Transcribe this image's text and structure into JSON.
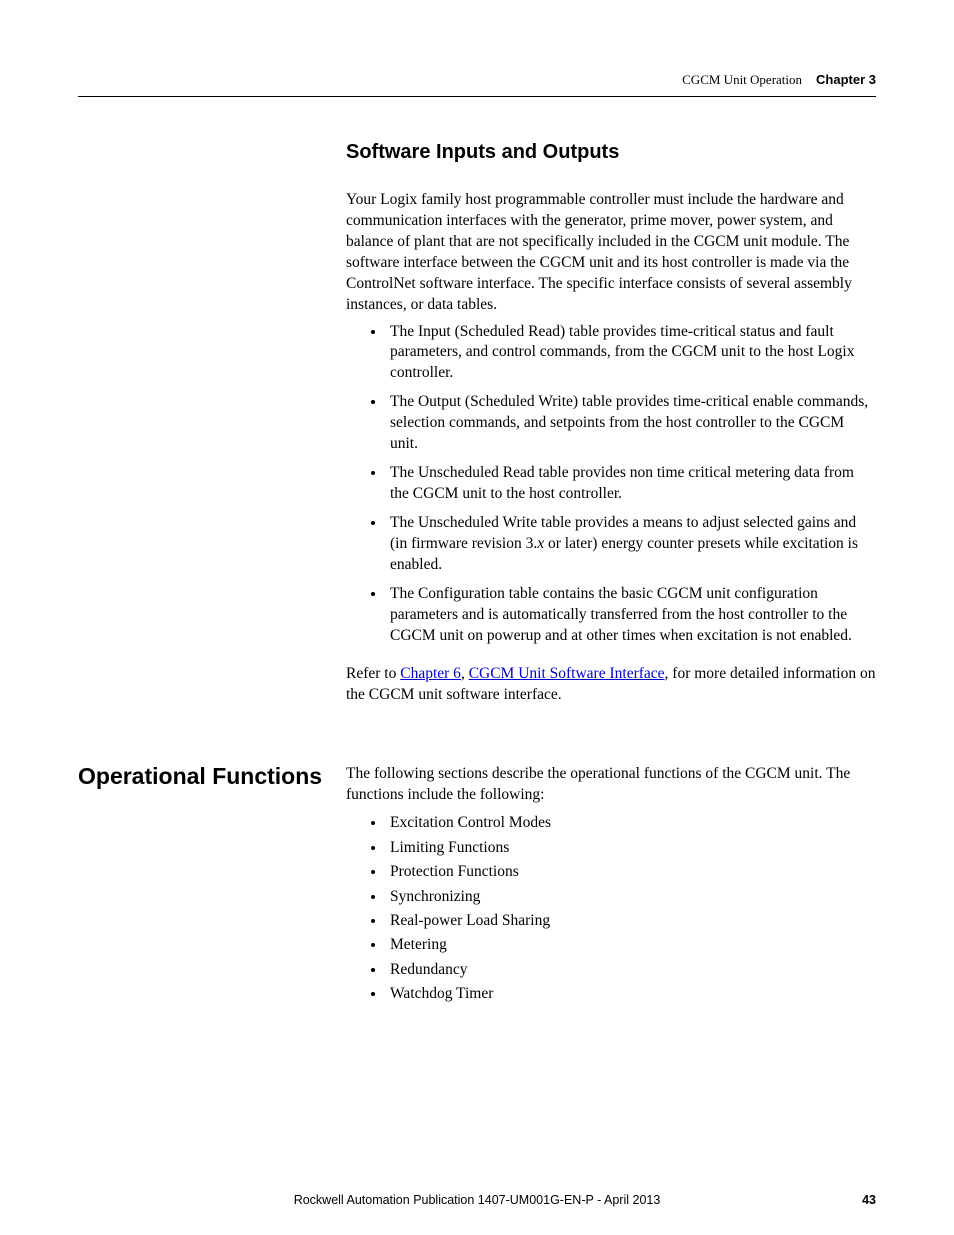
{
  "header": {
    "doc_section": "CGCM Unit Operation",
    "chapter": "Chapter 3"
  },
  "section1": {
    "heading": "Software Inputs and Outputs",
    "intro": "Your Logix family host programmable controller must include the hardware and communication interfaces with the generator, prime mover, power system, and balance of plant that are not specifically included in the CGCM unit module. The software interface between the CGCM unit and its host controller is made via the ControlNet software interface. The specific interface consists of several assembly instances, or data tables.",
    "bullets": [
      "The Input (Scheduled Read) table provides time-critical status and fault parameters, and control commands, from the CGCM unit to the host Logix controller.",
      "The Output (Scheduled Write) table provides time-critical enable commands, selection commands, and setpoints from the host controller to the CGCM unit.",
      "The Unscheduled Read table provides non time critical metering data from the CGCM unit to the host controller.",
      "",
      "The Configuration table contains the basic CGCM unit configuration parameters and is automatically transferred from the host controller to the CGCM unit on powerup and at other times when excitation is not enabled."
    ],
    "bullet4_pre": "The Unscheduled Write table provides a means to adjust selected gains and (in firmware revision 3.",
    "bullet4_italic": "x",
    "bullet4_post": " or later) energy counter presets while excitation is enabled.",
    "refer_pre": "Refer to ",
    "refer_link1": "Chapter 6",
    "refer_mid": ", ",
    "refer_link2": "CGCM Unit Software Interface",
    "refer_post": ", for more detailed information on the CGCM unit software interface."
  },
  "section2": {
    "sidebar": "Operational Functions",
    "intro": "The following sections describe the operational functions of the CGCM unit. The functions include the following:",
    "bullets": [
      "Excitation Control Modes",
      "Limiting Functions",
      "Protection Functions",
      "Synchronizing",
      "Real-power Load Sharing",
      "Metering",
      "Redundancy",
      "Watchdog Timer"
    ]
  },
  "footer": {
    "publication": "Rockwell Automation Publication 1407-UM001G-EN-P - April 2013",
    "page": "43"
  }
}
